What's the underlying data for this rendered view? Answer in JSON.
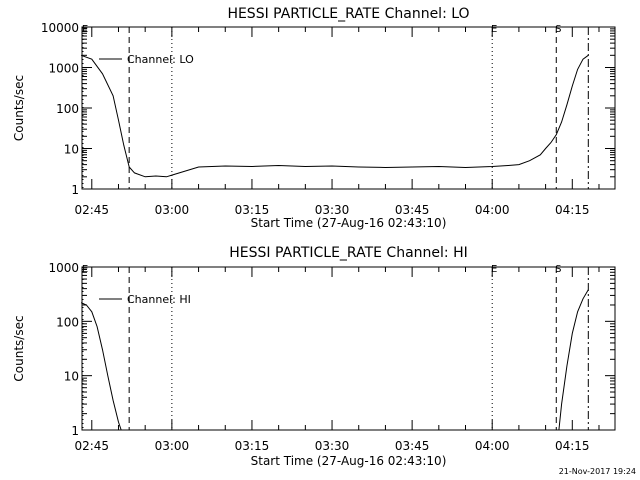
{
  "chart_data": [
    {
      "type": "line",
      "title": "HESSI PARTICLE_RATE Channel: LO",
      "xlabel": "Start Time (27-Aug-16 02:43:10)",
      "ylabel": "Counts/sec",
      "yscale": "log",
      "ylim": [
        1,
        10000
      ],
      "xlim": [
        "02:43:10",
        "04:23:00"
      ],
      "x_ticks": [
        "02:45",
        "03:00",
        "03:15",
        "03:30",
        "03:45",
        "04:00",
        "04:15"
      ],
      "y_ticks": [
        "1",
        "10",
        "100",
        "1000",
        "10000"
      ],
      "legend": {
        "label": "Channel: LO",
        "placement": "top-left"
      },
      "series": [
        {
          "name": "Channel: LO",
          "x": [
            "02:43",
            "02:45",
            "02:47",
            "02:49",
            "02:50",
            "02:51",
            "02:52",
            "02:53",
            "02:55",
            "02:57",
            "02:59",
            "03:00",
            "03:05",
            "03:10",
            "03:15",
            "03:20",
            "03:25",
            "03:30",
            "03:35",
            "03:40",
            "03:45",
            "03:50",
            "03:55",
            "04:00",
            "04:03",
            "04:05",
            "04:07",
            "04:09",
            "04:10",
            "04:11",
            "04:12",
            "04:13",
            "04:14",
            "04:15",
            "04:16",
            "04:17",
            "04:18"
          ],
          "values": [
            2000,
            1600,
            700,
            200,
            50,
            12,
            3.5,
            2.5,
            2,
            2.1,
            2,
            2.2,
            3.5,
            3.7,
            3.6,
            3.8,
            3.6,
            3.7,
            3.5,
            3.4,
            3.5,
            3.6,
            3.4,
            3.6,
            3.8,
            4,
            5,
            7,
            10,
            14,
            22,
            45,
            120,
            350,
            900,
            1600,
            2000
          ]
        }
      ],
      "markers": [
        {
          "label": "E",
          "time": "02:43",
          "style": "dotted"
        },
        {
          "label": "",
          "time": "02:52",
          "style": "dashed"
        },
        {
          "label": "",
          "time": "03:00",
          "style": "dotted"
        },
        {
          "label": "E",
          "time": "04:00",
          "style": "dotted"
        },
        {
          "label": "S",
          "time": "04:12",
          "style": "dashed"
        },
        {
          "label": "",
          "time": "04:18",
          "style": "dash-dot"
        }
      ]
    },
    {
      "type": "line",
      "title": "HESSI PARTICLE_RATE Channel: HI",
      "xlabel": "Start Time (27-Aug-16 02:43:10)",
      "ylabel": "Counts/sec",
      "yscale": "log",
      "ylim": [
        1,
        1000
      ],
      "xlim": [
        "02:43:10",
        "04:23:00"
      ],
      "x_ticks": [
        "02:45",
        "03:00",
        "03:15",
        "03:30",
        "03:45",
        "04:00",
        "04:15"
      ],
      "y_ticks": [
        "1",
        "10",
        "100",
        "1000"
      ],
      "legend": {
        "label": "Channel: HI",
        "placement": "top-left"
      },
      "series": [
        {
          "name": "Channel: HI",
          "x": [
            "02:43",
            "02:44",
            "02:45",
            "02:46",
            "02:47",
            "02:48",
            "02:49",
            "02:50",
            "02:50:30"
          ],
          "values": [
            220,
            200,
            150,
            80,
            30,
            10,
            3.5,
            1.4,
            1
          ]
        },
        {
          "name": "Channel: HI",
          "x": [
            "04:12:30",
            "04:13",
            "04:14",
            "04:15",
            "04:16",
            "04:17",
            "04:18"
          ],
          "values": [
            1,
            3,
            15,
            60,
            150,
            260,
            380
          ]
        }
      ],
      "markers": [
        {
          "label": "E",
          "time": "02:43",
          "style": "dotted"
        },
        {
          "label": "",
          "time": "02:52",
          "style": "dashed"
        },
        {
          "label": "",
          "time": "03:00",
          "style": "dotted"
        },
        {
          "label": "E",
          "time": "04:00",
          "style": "dotted"
        },
        {
          "label": "S",
          "time": "04:12",
          "style": "dashed"
        },
        {
          "label": "",
          "time": "04:18",
          "style": "dash-dot"
        }
      ]
    }
  ],
  "footer": {
    "timestamp": "21-Nov-2017 19:24"
  }
}
